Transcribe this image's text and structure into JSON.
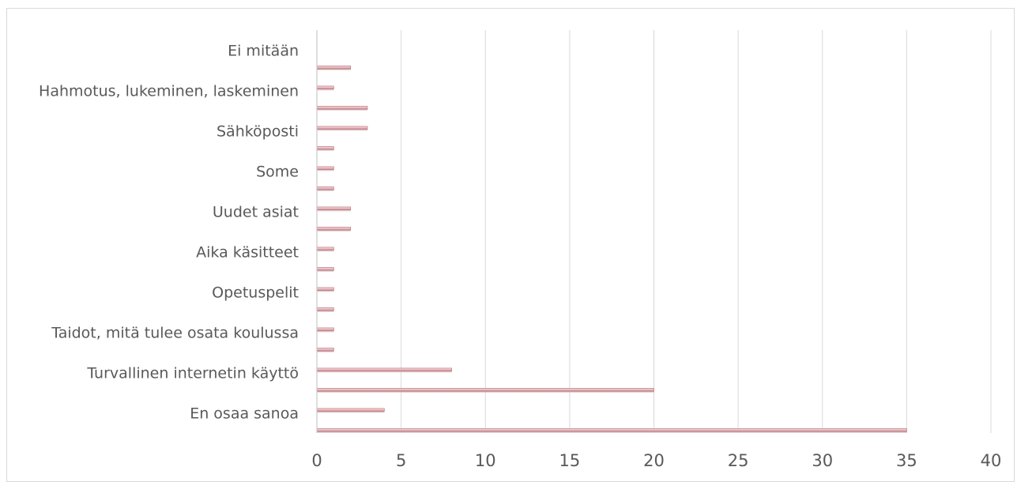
{
  "chart_data": {
    "type": "bar",
    "orientation": "horizontal",
    "categories": [
      "En osaa sanoa",
      "Turvallinen internetin käyttö",
      "Taidot, mitä tulee osata koulussa",
      "Opetuspelit",
      "Aika käsitteet",
      "Uudet asiat",
      "Some",
      "Sähköposti",
      "Hahmotus, lukeminen, laskeminen",
      "Ei mitään"
    ],
    "series": [
      {
        "values": [
          35,
          20,
          1,
          1,
          1,
          2,
          1,
          1,
          3,
          2
        ]
      },
      {
        "values": [
          4,
          8,
          1,
          1,
          1,
          2,
          1,
          3,
          1,
          0
        ]
      }
    ],
    "xlim": [
      0,
      40
    ],
    "x_ticks": [
      "0",
      "5",
      "10",
      "15",
      "20",
      "25",
      "30",
      "35",
      "40"
    ],
    "grid": true,
    "legend": "none",
    "colors": {
      "bar": "#e8b4b8",
      "bar_edge": "#b06b73",
      "grid": "#d9d9d9"
    }
  }
}
